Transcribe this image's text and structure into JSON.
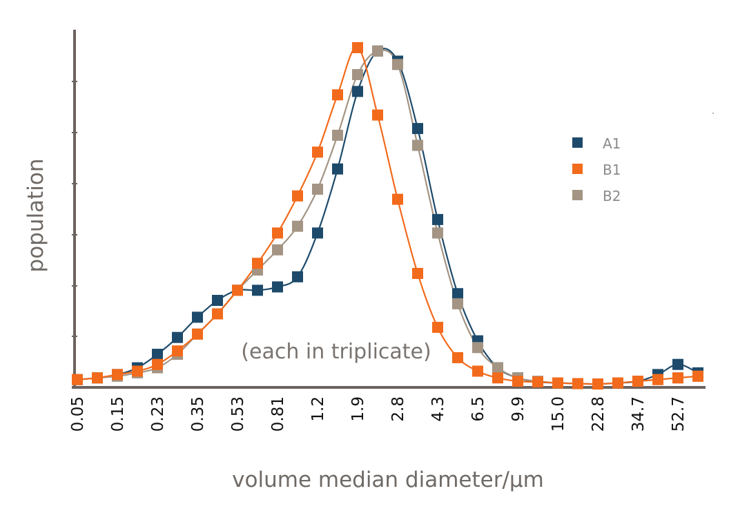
{
  "chart_data": {
    "type": "scatter",
    "title": "",
    "xlabel": "volume median diameter/μm",
    "ylabel": "population",
    "annotation": "(each in triplicate)",
    "x_tick_labels": [
      "0.05",
      "0.15",
      "0.23",
      "0.35",
      "0.53",
      "0.81",
      "1.2",
      "1.9",
      "2.8",
      "4.3",
      "6.5",
      "9.9",
      "15.0",
      "22.8",
      "34.7",
      "52.7"
    ],
    "x_scale": "log (bin index)",
    "x_points_per_labelled_tick": 2,
    "ylim": [
      0,
      100
    ],
    "y_tick_labels_shown": false,
    "grid": false,
    "legend": "right",
    "series": [
      {
        "name": "A1",
        "color": "#1d4a6b",
        "values": [
          1.5,
          2,
          3,
          5,
          9,
          14,
          20,
          25,
          28,
          28,
          29,
          32,
          45,
          64,
          87,
          99,
          96,
          76,
          49,
          27,
          13,
          5,
          2,
          0.8,
          0.5,
          0.3,
          0.2,
          0.5,
          1,
          3,
          6,
          3.5
        ]
      },
      {
        "name": "B1",
        "color": "#f26a1b",
        "values": [
          1.5,
          2,
          3,
          4,
          6,
          10,
          15,
          21,
          28,
          36,
          45,
          56,
          69,
          86,
          100,
          80,
          55,
          33,
          17,
          8,
          4,
          2,
          1,
          0.8,
          0.5,
          0.3,
          0.2,
          0.5,
          1,
          1.5,
          2,
          2.5
        ]
      },
      {
        "name": "B2",
        "color": "#a39484",
        "values": [
          1.5,
          2,
          2.5,
          3.5,
          5,
          9,
          15,
          21,
          28,
          34,
          40,
          47,
          58,
          74,
          92,
          99,
          95,
          71,
          45,
          24,
          11,
          5,
          2,
          1,
          0.5,
          0.3,
          0.2,
          0.5,
          1,
          1.5,
          2,
          2.5
        ]
      }
    ]
  }
}
